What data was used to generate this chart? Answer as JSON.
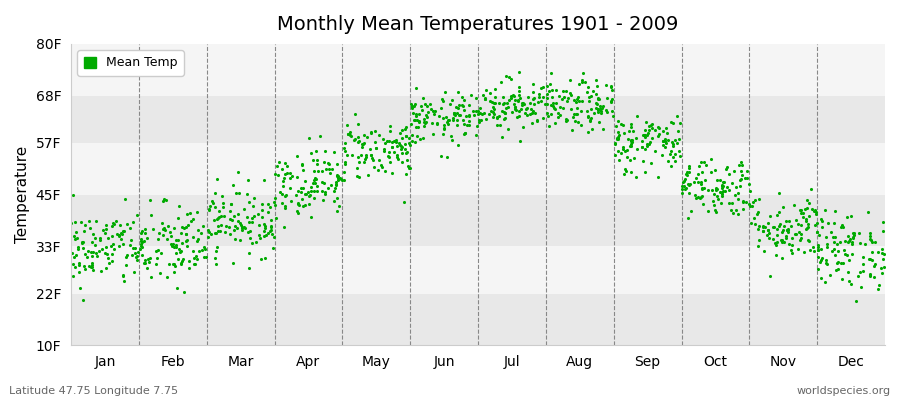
{
  "title": "Monthly Mean Temperatures 1901 - 2009",
  "ylabel": "Temperature",
  "bottom_left_text": "Latitude 47.75 Longitude 7.75",
  "bottom_right_text": "worldspecies.org",
  "legend_label": "Mean Temp",
  "dot_color": "#00AA00",
  "bg_dark": "#E8E8E8",
  "bg_light": "#F5F5F5",
  "ytick_values": [
    10,
    22,
    33,
    45,
    57,
    68,
    80
  ],
  "ytick_labels": [
    "10F",
    "22F",
    "33F",
    "45F",
    "57F",
    "68F",
    "80F"
  ],
  "ylim": [
    10,
    80
  ],
  "months": [
    "Jan",
    "Feb",
    "Mar",
    "Apr",
    "May",
    "Jun",
    "Jul",
    "Aug",
    "Sep",
    "Oct",
    "Nov",
    "Dec"
  ],
  "monthly_mean_temps_F": [
    32.5,
    33.0,
    39.0,
    48.0,
    55.5,
    62.5,
    66.0,
    65.5,
    57.0,
    47.0,
    37.5,
    32.0
  ],
  "monthly_std_temps_F": [
    4.5,
    5.0,
    4.0,
    4.0,
    3.5,
    3.0,
    3.0,
    3.0,
    3.5,
    3.5,
    4.0,
    4.5
  ],
  "n_years": 109,
  "seed": 42
}
